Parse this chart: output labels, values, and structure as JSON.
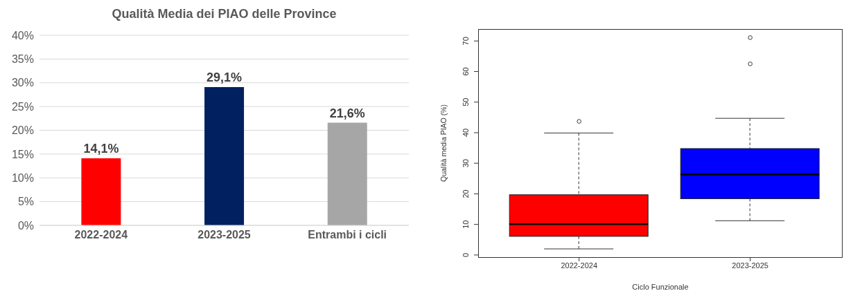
{
  "chart_data": [
    {
      "type": "bar",
      "title": "Qualità Media dei PIAO delle Province",
      "categories": [
        "2022-2024",
        "2023-2025",
        "Entrambi i cicli"
      ],
      "values": [
        14.1,
        29.1,
        21.6
      ],
      "colors": [
        "#ff0000",
        "#002060",
        "#a6a6a6"
      ],
      "value_labels": [
        "14,1%",
        "29,1%",
        "21,6%"
      ],
      "ylim": [
        0,
        40
      ],
      "yticks": [
        {
          "value": 0,
          "label": "0%"
        },
        {
          "value": 5,
          "label": "5%"
        },
        {
          "value": 10,
          "label": "10%"
        },
        {
          "value": 15,
          "label": "15%"
        },
        {
          "value": 20,
          "label": "20%"
        },
        {
          "value": 25,
          "label": "25%"
        },
        {
          "value": 30,
          "label": "30%"
        },
        {
          "value": 35,
          "label": "35%"
        },
        {
          "value": 40,
          "label": "40%"
        }
      ],
      "grid": "y"
    },
    {
      "type": "box",
      "xlabel": "Ciclo Funzionale",
      "ylabel": "Qualità media PIAO (%)",
      "categories": [
        "2022-2024",
        "2023-2025"
      ],
      "colors": [
        "#ff0000",
        "#0000ff"
      ],
      "boxes": [
        {
          "low": 2.0,
          "q1": 6.1,
          "median": 10.1,
          "q3": 19.7,
          "high": 39.9,
          "outliers": [
            43.7
          ]
        },
        {
          "low": 11.2,
          "q1": 18.4,
          "median": 26.3,
          "q3": 34.8,
          "high": 44.7,
          "outliers": [
            62.5,
            71.1
          ]
        }
      ],
      "ylim": [
        -0.7,
        73.9
      ],
      "yticks": [
        0,
        10,
        20,
        30,
        40,
        50,
        60,
        70
      ],
      "grid": false
    }
  ]
}
